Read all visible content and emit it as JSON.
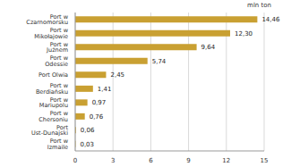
{
  "chart_data": {
    "type": "bar",
    "orientation": "horizontal",
    "xlabel": "mln ton",
    "categories": [
      "Port w Czarnomorsku",
      "Port w Mikołajowie",
      "Port w Jużnem",
      "Port w Odessie",
      "Port Olwia",
      "Port w Berdiańsku",
      "Port w Mariupolu",
      "Port w Chersoniu",
      "Port Ust-Dunajski",
      "Port w Izmaile"
    ],
    "values": [
      14.46,
      12.3,
      9.64,
      5.74,
      2.45,
      1.41,
      0.97,
      0.76,
      0.06,
      0.03
    ],
    "value_labels": [
      "14,46",
      "12,30",
      "9,64",
      "5,74",
      "2,45",
      "1,41",
      "0,97",
      "0,76",
      "0,06",
      "0,03"
    ],
    "data_labels": true,
    "color": "#c9a032",
    "xlim": [
      0,
      15
    ],
    "xticks": [
      0,
      3,
      6,
      9,
      12,
      15
    ],
    "grid": true
  }
}
